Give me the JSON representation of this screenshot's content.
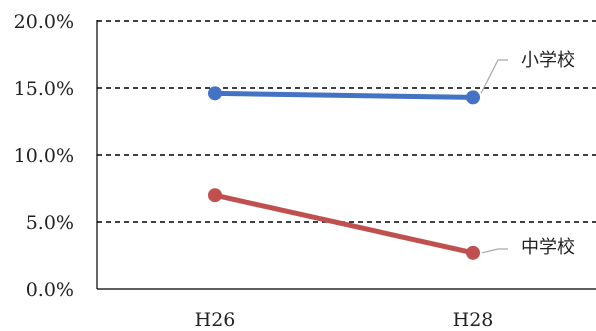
{
  "chart_data": {
    "type": "line",
    "categories": [
      "H26",
      "H28"
    ],
    "series": [
      {
        "name": "小学校",
        "values": [
          14.6,
          14.3
        ],
        "color": "#4472C4"
      },
      {
        "name": "中学校",
        "values": [
          7.0,
          2.7
        ],
        "color": "#C0504D"
      }
    ],
    "y_tick_labels": [
      "0.0%",
      "5.0%",
      "10.0%",
      "15.0%",
      "20.0%"
    ],
    "y_ticks": [
      0,
      5,
      10,
      15,
      20
    ],
    "ylim": [
      0,
      20
    ],
    "grid": "dashed horizontal",
    "legend": "inline labels at right end of lines",
    "title": "",
    "xlabel": "",
    "ylabel": ""
  }
}
